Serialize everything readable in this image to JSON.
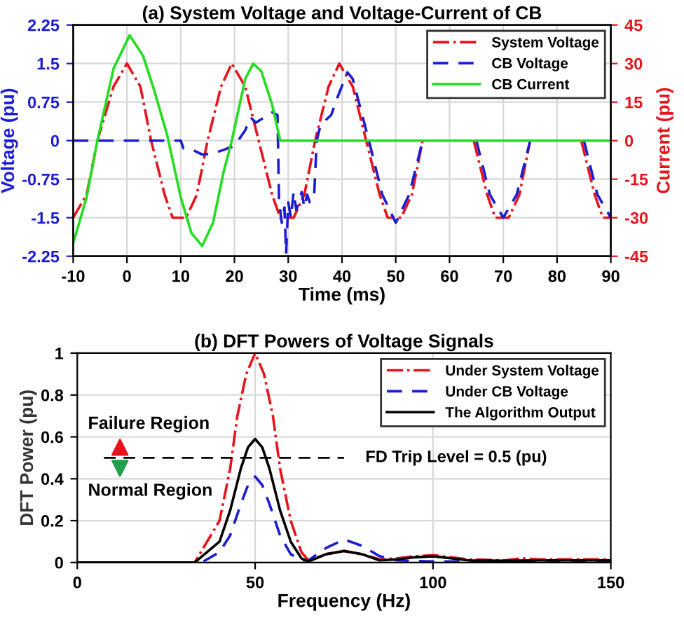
{
  "chart_data": [
    {
      "type": "line",
      "title": "(a) System Voltage and Voltage-Current of CB",
      "xlabel": "Time (ms)",
      "ylabel": "Voltage (pu)",
      "y2label": "Current (pu)",
      "xlim": [
        -10,
        90
      ],
      "xticks": [
        -10,
        0,
        10,
        20,
        30,
        40,
        50,
        60,
        70,
        80,
        90
      ],
      "ylim": [
        -2.25,
        2.25
      ],
      "yticks": [
        -2.25,
        -1.5,
        -0.75,
        0,
        0.75,
        1.5,
        2.25
      ],
      "y2lim": [
        -45,
        45
      ],
      "y2ticks": [
        -45,
        -30,
        -15,
        0,
        15,
        30,
        45
      ],
      "grid": true,
      "legend": "top right",
      "series": [
        {
          "name": "System Voltage",
          "color": "#e8141c",
          "line_style": "dashdot",
          "x": [
            -10,
            -7.5,
            -5.5,
            -2.5,
            0,
            2.5,
            4.5,
            7,
            8.5,
            11,
            13,
            15,
            17.5,
            19.5,
            22,
            24.5,
            27,
            28.5,
            31,
            33,
            35,
            37.5,
            39.5,
            42,
            44.5,
            47,
            48.5,
            51,
            53,
            55,
            57.5,
            60,
            62.5,
            64.5,
            67,
            68.5,
            71,
            73,
            75,
            77.5,
            80,
            82.5,
            84.5,
            87,
            88.5,
            90
          ],
          "values": [
            -1.5,
            -1.05,
            0,
            1.05,
            1.5,
            1.05,
            0,
            -1.05,
            -1.5,
            -1.5,
            -1.05,
            0,
            1.05,
            1.5,
            1.05,
            0,
            -1.05,
            -1.5,
            -1.5,
            -1.05,
            0,
            1.05,
            1.5,
            1.05,
            0,
            -1.05,
            -1.5,
            -1.5,
            -1.05,
            0,
            null,
            null,
            null,
            0,
            -1.05,
            -1.5,
            -1.5,
            -1.05,
            0,
            null,
            null,
            null,
            0,
            -1.05,
            -1.5,
            -1.5
          ]
        },
        {
          "name": "CB Voltage",
          "color": "#1c1cd4",
          "line_style": "dashed",
          "x": [
            -10,
            10,
            10.5,
            12,
            14,
            16,
            18,
            20,
            22,
            23,
            24,
            25.5,
            27,
            28,
            28.3,
            28.8,
            29.3,
            29.6,
            30,
            30.5,
            31,
            31.5,
            32,
            32.5,
            33,
            33.5,
            34,
            34.8,
            35.3,
            36,
            38,
            39,
            40.5,
            41,
            42,
            45,
            47.5,
            50,
            52.5,
            55,
            57.5,
            60,
            62.5,
            65,
            67.5,
            70,
            72.5,
            75,
            77.5,
            80,
            82.5,
            85,
            87.5,
            90
          ],
          "values": [
            0,
            0,
            -0.15,
            -0.17,
            -0.27,
            -0.25,
            -0.18,
            -0.1,
            0.2,
            0.45,
            0.35,
            0.45,
            0.55,
            0.5,
            -1.2,
            -1.6,
            -1.3,
            -2.2,
            -1.2,
            -1.5,
            -1.0,
            -1.35,
            -1.2,
            -1.0,
            -1.3,
            -1.05,
            -1.2,
            -1.1,
            0,
            0.3,
            0.5,
            0.8,
            1.2,
            1.33,
            1.2,
            0,
            -1.05,
            -1.6,
            -1.05,
            0,
            null,
            null,
            null,
            0,
            -1.05,
            -1.5,
            -1.05,
            0,
            null,
            null,
            null,
            0,
            -1.05,
            -1.5
          ]
        },
        {
          "name": "CB Current",
          "color": "#22dd22",
          "line_style": "solid",
          "axis": "y2",
          "x": [
            -10,
            -7.5,
            -5.5,
            -2.5,
            0.5,
            3,
            5,
            7.5,
            10,
            12,
            14,
            16,
            18,
            19.5,
            22,
            23.5,
            25,
            27,
            28.5,
            90
          ],
          "values": [
            -40,
            -22,
            0,
            28,
            41,
            33,
            20,
            2,
            -22,
            -36,
            -41,
            -32,
            -12,
            0,
            24,
            30,
            27,
            14,
            0,
            0
          ]
        }
      ]
    },
    {
      "type": "line",
      "title": "(b) DFT Powers of Voltage Signals",
      "xlabel": "Frequency (Hz)",
      "ylabel": "DFT Power (pu)",
      "xlim": [
        0,
        150
      ],
      "xticks": [
        0,
        50,
        100,
        150
      ],
      "ylim": [
        0,
        1
      ],
      "yticks": [
        0,
        0.2,
        0.4,
        0.6,
        0.8,
        1
      ],
      "grid": true,
      "legend": "top right",
      "ref_lines": [
        {
          "axis": "y",
          "value": 0.5,
          "label": "FD Trip Level = 0.5 (pu)",
          "color": "#000000",
          "line_style": "dashed"
        }
      ],
      "annotations": [
        "Failure Region",
        "Normal Region"
      ],
      "series": [
        {
          "name": "Under System Voltage",
          "color": "#e8141c",
          "line_style": "dashdot",
          "x": [
            0,
            33,
            40,
            43,
            45,
            47.5,
            50,
            52.5,
            55,
            57,
            60,
            63,
            65,
            70,
            75,
            80,
            85,
            90,
            95,
            100,
            105,
            110,
            120,
            125,
            130,
            150
          ],
          "values": [
            0,
            0,
            0.2,
            0.45,
            0.7,
            0.9,
            1.0,
            0.9,
            0.7,
            0.45,
            0.2,
            0.05,
            0.01,
            0.04,
            0.055,
            0.04,
            0.015,
            0.02,
            0.03,
            0.035,
            0.025,
            0.015,
            0.01,
            0.02,
            0.015,
            0.015
          ]
        },
        {
          "name": "Under CB Voltage",
          "color": "#1c1cd4",
          "line_style": "dashed",
          "x": [
            0,
            35,
            40,
            43,
            46,
            48,
            50,
            52,
            54,
            57,
            60,
            63,
            65,
            70,
            75,
            80,
            85,
            90,
            100,
            150
          ],
          "values": [
            0,
            0,
            0.05,
            0.13,
            0.28,
            0.37,
            0.41,
            0.37,
            0.28,
            0.13,
            0.04,
            0.01,
            0.01,
            0.07,
            0.11,
            0.08,
            0.03,
            0.01,
            0.005,
            0.005
          ]
        },
        {
          "name": "The Algorithm Output",
          "color": "#000000",
          "line_style": "solid",
          "x": [
            0,
            33,
            40,
            43,
            46,
            48,
            50,
            52,
            54,
            57,
            60,
            63,
            65,
            70,
            75,
            80,
            85,
            90,
            95,
            100,
            105,
            110,
            120,
            130,
            150
          ],
          "values": [
            0,
            0,
            0.1,
            0.25,
            0.45,
            0.55,
            0.59,
            0.55,
            0.45,
            0.25,
            0.1,
            0.02,
            0.005,
            0.04,
            0.055,
            0.04,
            0.01,
            0.015,
            0.025,
            0.03,
            0.02,
            0.01,
            0.008,
            0.01,
            0.01
          ]
        }
      ]
    }
  ]
}
